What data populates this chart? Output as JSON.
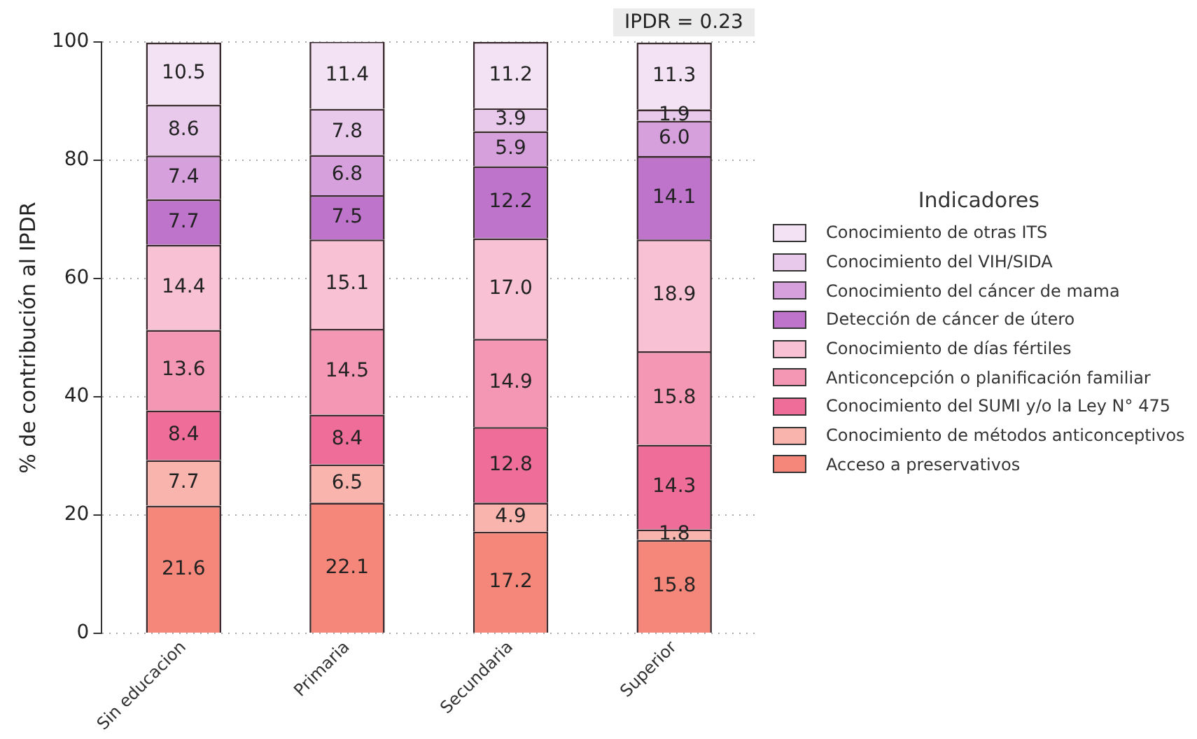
{
  "chart_data": {
    "type": "bar",
    "stacked": true,
    "ylabel": "% de contribución al IPDR",
    "legend_title": "Indicadores",
    "legend": "right",
    "grid": "y",
    "annotations": [
      "IPDR = 0.23"
    ],
    "categories": [
      "Sin educacion",
      "Primaria",
      "Secundaria",
      "Superior"
    ],
    "ylim": [
      0,
      100
    ],
    "yticks": [
      0,
      20,
      40,
      60,
      80,
      100
    ],
    "series": [
      {
        "name": "Acceso a preservativos",
        "color": "#f4877a",
        "values": [
          21.6,
          22.1,
          17.2,
          15.8
        ],
        "value_labels": [
          "21.6",
          "22.1",
          "17.2",
          "15.8"
        ]
      },
      {
        "name": "Conocimiento de métodos anticonceptivos",
        "color": "#f9b4ae",
        "values": [
          7.7,
          6.5,
          4.9,
          1.8
        ],
        "value_labels": [
          "7.7",
          "6.5",
          "4.9",
          "1.8"
        ]
      },
      {
        "name": "Conocimiento del SUMI y/o la Ley N° 475",
        "color": "#ee6e99",
        "values": [
          8.4,
          8.4,
          12.8,
          14.3
        ],
        "value_labels": [
          "8.4",
          "8.4",
          "12.8",
          "14.3"
        ]
      },
      {
        "name": "Anticoncepción o planificación familiar",
        "color": "#f497b5",
        "values": [
          13.6,
          14.5,
          14.9,
          15.8
        ],
        "value_labels": [
          "13.6",
          "14.5",
          "14.9",
          "15.8"
        ]
      },
      {
        "name": "Conocimiento de días fértiles",
        "color": "#f9c2d4",
        "values": [
          14.4,
          15.1,
          17.0,
          18.9
        ],
        "value_labels": [
          "14.4",
          "15.1",
          "17.0",
          "18.9"
        ]
      },
      {
        "name": "Detección de cáncer de útero",
        "color": "#bf74cc",
        "values": [
          7.7,
          7.5,
          12.2,
          14.1
        ],
        "value_labels": [
          "7.7",
          "7.5",
          "12.2",
          "14.1"
        ]
      },
      {
        "name": "Conocimiento del cáncer de mama",
        "color": "#d6a0dc",
        "values": [
          7.4,
          6.8,
          5.9,
          6.0
        ],
        "value_labels": [
          "7.4",
          "6.8",
          "5.9",
          "6.0"
        ]
      },
      {
        "name": "Conocimiento del VIH/SIDA",
        "color": "#e8c9ec",
        "values": [
          8.6,
          7.8,
          3.9,
          1.9
        ],
        "value_labels": [
          "8.6",
          "7.8",
          "3.9",
          "1.9"
        ]
      },
      {
        "name": "Conocimiento de otras ITS",
        "color": "#f3e2f3",
        "values": [
          10.5,
          11.4,
          11.2,
          11.3
        ],
        "value_labels": [
          "10.5",
          "11.4",
          "11.2",
          "11.3"
        ]
      }
    ]
  }
}
